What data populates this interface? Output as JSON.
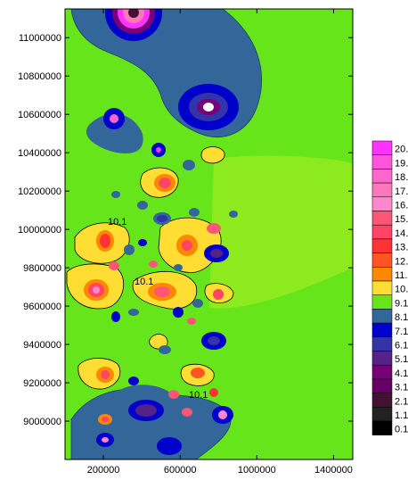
{
  "chart_data": {
    "type": "heatmap",
    "subtype": "filled-contour",
    "title": "",
    "xlabel": "",
    "ylabel": "",
    "xlim": [
      0,
      1500000
    ],
    "ylim": [
      8800000,
      11150000
    ],
    "x_ticks": [
      200000,
      600000,
      1000000,
      1400000
    ],
    "x_tick_labels": [
      "200000",
      "600000",
      "1000000",
      "1400000"
    ],
    "y_ticks": [
      9000000,
      9200000,
      9400000,
      9600000,
      9800000,
      10000000,
      10200000,
      10400000,
      10600000,
      10800000,
      11000000
    ],
    "y_tick_labels": [
      "9000000",
      "9200000",
      "9400000",
      "9600000",
      "9800000",
      "10000000",
      "10200000",
      "10400000",
      "10600000",
      "10800000",
      "11000000"
    ],
    "levels": [
      0.1,
      1.1,
      2.1,
      3.1,
      4.1,
      5.1,
      6.1,
      7.1,
      8.1,
      9.1,
      10.1,
      11.1,
      12.1,
      13.1,
      14.1,
      15.1,
      16.1,
      17.1,
      18.1,
      19.1,
      20.1
    ],
    "legend_labels": [
      "20.",
      "19.",
      "18.",
      "17.",
      "16.",
      "15.",
      "14.",
      "13.",
      "12.",
      "11.",
      "10.",
      "9.1",
      "8.1",
      "7.1",
      "6.1",
      "5.1",
      "4.1",
      "3.1",
      "2.1",
      "1.1",
      "0.1"
    ],
    "legend_colors": [
      "#ff33ff",
      "#ff55dd",
      "#ff66cc",
      "#ff77bb",
      "#ff88cc",
      "#ff5577",
      "#ff4466",
      "#ff3333",
      "#ff5522",
      "#ff8800",
      "#ffdd33",
      "#66e61a",
      "#336699",
      "#0000cc",
      "#3333aa",
      "#552288",
      "#770077",
      "#660066",
      "#441133",
      "#222222",
      "#000000"
    ],
    "legend_placement": "right",
    "contour_labels": [
      "10.1",
      "10.1",
      "10.1"
    ],
    "grid": false
  }
}
